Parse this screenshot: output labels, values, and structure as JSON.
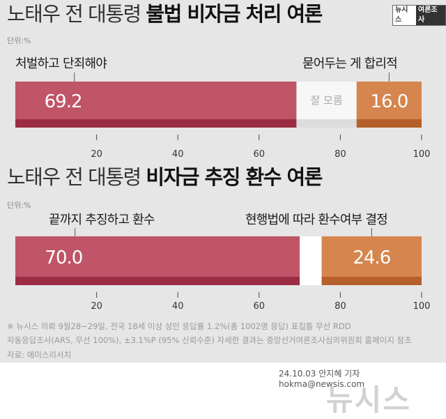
{
  "logo": {
    "part1": "뉴시스",
    "part2": "여론조사"
  },
  "charts": [
    {
      "title_normal": "노태우 전 대통령",
      "title_bold": "불법 비자금 처리 여론",
      "unit": "단위:%",
      "labels": {
        "left": "처벌하고 단죄해야",
        "right": "묻어두는 게 합리적"
      }
    },
    {
      "title_normal": "노태우 전 대통령",
      "title_bold": "비자금 추징 환수 여론",
      "unit": "단위:%",
      "labels": {
        "left": "끝까지 추징하고 환수",
        "right": "현행법에 따라 환수여부 결정"
      }
    }
  ],
  "chart_data": [
    {
      "type": "bar",
      "orientation": "horizontal-stacked",
      "categories": [
        "처벌하고 단죄해야",
        "잘 모름",
        "묻어두는 게 합리적"
      ],
      "values": [
        69.2,
        14.8,
        16.0
      ],
      "value_labels": [
        "69.2",
        "잘 모름",
        "16.0"
      ],
      "colors": [
        "#bf5567",
        "#f7f7f7",
        "#d5854d"
      ],
      "dark_colors": [
        "#9b2c44",
        "#dcdcdc",
        "#b65f2a"
      ],
      "label_colors": [
        "#ffffff",
        "#aaaaaa",
        "#ffffff"
      ],
      "xticks": [
        20,
        40,
        60,
        80,
        100
      ],
      "xlim": [
        0,
        100
      ]
    },
    {
      "type": "bar",
      "orientation": "horizontal-stacked",
      "categories": [
        "끝까지 추징하고 환수",
        "",
        "현행법에 따라 환수여부 결정"
      ],
      "values": [
        70.0,
        5.4,
        24.6
      ],
      "value_labels": [
        "70.0",
        "",
        "24.6"
      ],
      "colors": [
        "#bf5567",
        "#ffffff",
        "#d5854d"
      ],
      "dark_colors": [
        "#9b2c44",
        "#ffffff",
        "#b65f2a"
      ],
      "label_colors": [
        "#ffffff",
        "#aaaaaa",
        "#ffffff"
      ],
      "xticks": [
        20,
        40,
        60,
        80,
        100
      ],
      "xlim": [
        0,
        100
      ]
    }
  ],
  "notes": [
    "※ 뉴시스 의뢰 9월28~29일, 전국 18세 이상 성인 응답률 1.2%(총 1002명 응답) 표집틀 무선 RDD",
    "자동응답조사(ARS, 무선 100%), ±3.1%P (95% 신뢰수준) 자세한 결과는 중앙선거여론조사심의위원회 홈페이지 참조",
    "자료: 에이스리서치"
  ],
  "credit": "24.10.03 안지혜 기자 hokma@newsis.com",
  "watermark": "뉴시스"
}
